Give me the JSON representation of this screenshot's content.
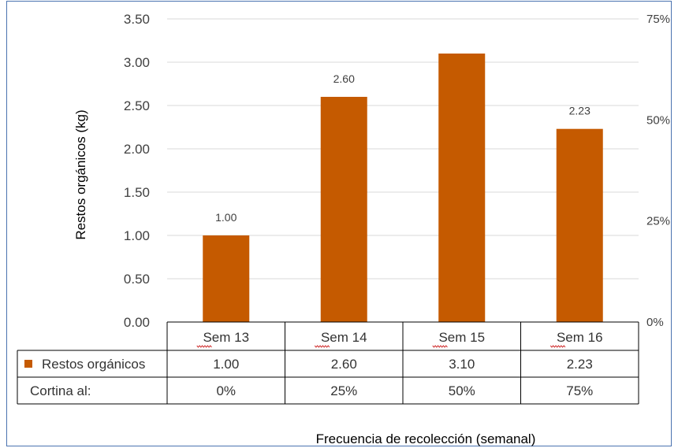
{
  "chart_data": {
    "type": "bar",
    "categories": [
      "Sem 13",
      "Sem 14",
      "Sem 15",
      "Sem 16"
    ],
    "series": [
      {
        "name": "Restos orgánicos",
        "values": [
          1.0,
          2.6,
          3.1,
          2.23
        ],
        "color": "#c55a00"
      }
    ],
    "data_labels": [
      "1.00",
      "2.60",
      "",
      "2.23"
    ],
    "ylabel": "Restos orgánicos (kg)",
    "xlabel": "Frecuencia de recolección (semanal)",
    "ylim": [
      0,
      3.5
    ],
    "y_ticks": [
      "0.00",
      "0.50",
      "1.00",
      "1.50",
      "2.00",
      "2.50",
      "3.00",
      "3.50"
    ],
    "y2_ticks": [
      "0%",
      "25%",
      "50%",
      "75%"
    ],
    "y2lim": [
      0,
      0.75
    ],
    "grid": true,
    "data_table": {
      "rows": [
        {
          "label": "Restos orgánicos",
          "values": [
            "1.00",
            "2.60",
            "3.10",
            "2.23"
          ],
          "has_legend_key": true
        },
        {
          "label": "Cortina al:",
          "values": [
            "0%",
            "25%",
            "50%",
            "75%"
          ],
          "has_legend_key": false
        }
      ]
    }
  }
}
